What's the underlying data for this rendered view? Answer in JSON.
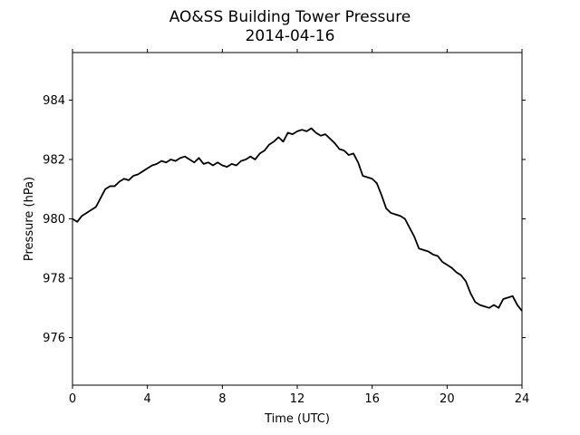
{
  "chart_data": {
    "type": "line",
    "title": "AO&SS Building Tower Pressure",
    "subtitle": "2014-04-16",
    "xlabel": "Time (UTC)",
    "ylabel": "Pressure (hPa)",
    "xlim": [
      0,
      24
    ],
    "ylim": [
      974.4,
      985.6
    ],
    "xticks": [
      0,
      4,
      8,
      12,
      16,
      20,
      24
    ],
    "yticks": [
      976,
      978,
      980,
      982,
      984
    ],
    "grid": false,
    "line_color": "#000000",
    "series": [
      {
        "x": [
          0,
          0.25,
          0.5,
          0.75,
          1,
          1.25,
          1.5,
          1.75,
          2,
          2.25,
          2.5,
          2.75,
          3,
          3.25,
          3.5,
          3.75,
          4,
          4.25,
          4.5,
          4.75,
          5,
          5.25,
          5.5,
          5.75,
          6,
          6.25,
          6.5,
          6.75,
          7,
          7.25,
          7.5,
          7.75,
          8,
          8.25,
          8.5,
          8.75,
          9,
          9.25,
          9.5,
          9.75,
          10,
          10.25,
          10.5,
          10.75,
          11,
          11.25,
          11.5,
          11.75,
          12,
          12.25,
          12.5,
          12.75,
          13,
          13.25,
          13.5,
          13.75,
          14,
          14.25,
          14.5,
          14.75,
          15,
          15.25,
          15.5,
          15.75,
          16,
          16.25,
          16.5,
          16.75,
          17,
          17.25,
          17.5,
          17.75,
          18,
          18.25,
          18.5,
          18.75,
          19,
          19.25,
          19.5,
          19.75,
          20,
          20.25,
          20.5,
          20.75,
          21,
          21.25,
          21.5,
          21.75,
          22,
          22.25,
          22.5,
          22.75,
          23,
          23.25,
          23.5,
          23.75,
          24
        ],
        "y": [
          980.0,
          979.9,
          980.1,
          980.2,
          980.3,
          980.4,
          980.7,
          981.0,
          981.1,
          981.1,
          981.25,
          981.35,
          981.3,
          981.45,
          981.5,
          981.6,
          981.7,
          981.8,
          981.85,
          981.95,
          981.9,
          982.0,
          981.95,
          982.05,
          982.1,
          982.0,
          981.9,
          982.05,
          981.85,
          981.9,
          981.8,
          981.9,
          981.8,
          981.75,
          981.85,
          981.8,
          981.95,
          982.0,
          982.1,
          982.0,
          982.2,
          982.3,
          982.5,
          982.6,
          982.75,
          982.6,
          982.9,
          982.85,
          982.95,
          983.0,
          982.95,
          983.05,
          982.9,
          982.8,
          982.85,
          982.7,
          982.55,
          982.35,
          982.3,
          982.15,
          982.2,
          981.9,
          981.45,
          981.4,
          981.35,
          981.2,
          980.8,
          980.35,
          980.2,
          980.15,
          980.1,
          980.0,
          979.7,
          979.4,
          979.0,
          978.95,
          978.9,
          978.8,
          978.75,
          978.55,
          978.45,
          978.35,
          978.2,
          978.1,
          977.9,
          977.5,
          977.2,
          977.1,
          977.05,
          977.0,
          977.1,
          977.0,
          977.3,
          977.35,
          977.4,
          977.1,
          976.9
        ]
      }
    ]
  }
}
